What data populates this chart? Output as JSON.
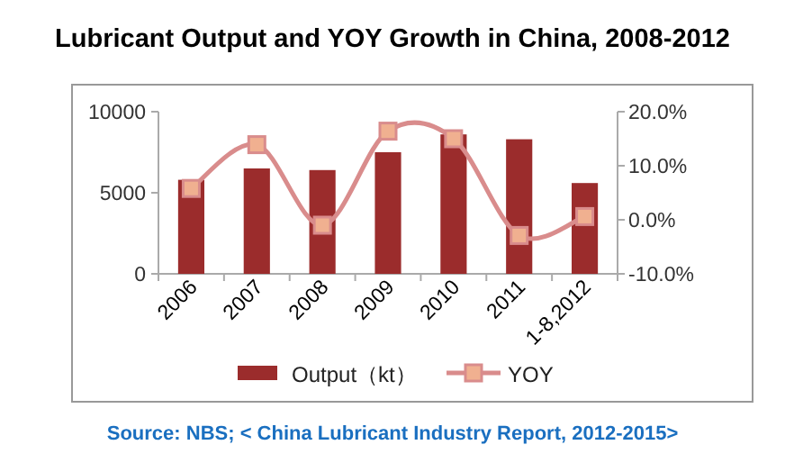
{
  "chart_data": {
    "type": "bar",
    "title": "Lubricant Output and YOY Growth in China, 2008-2012",
    "categories": [
      "2006",
      "2007",
      "2008",
      "2009",
      "2010",
      "2011",
      "1-8,2012"
    ],
    "series": [
      {
        "name": "Output（kt）",
        "color": "#9b2c2c",
        "values": [
          5800,
          6500,
          6400,
          7500,
          8600,
          8300,
          5600
        ]
      },
      {
        "name": "YOY",
        "type": "line",
        "axis": "y2",
        "color": "#d98c8c",
        "values": [
          5.8,
          13.9,
          -1.0,
          16.4,
          15.0,
          -2.9,
          0.6
        ]
      }
    ],
    "ylim": [
      0,
      10000
    ],
    "yticks": [
      0,
      5000,
      10000
    ],
    "y2lim": [
      -10,
      20
    ],
    "y2ticks": [
      {
        "value": -10,
        "label": "-10.0%"
      },
      {
        "value": 0,
        "label": "0.0%"
      },
      {
        "value": 10,
        "label": "10.0%"
      },
      {
        "value": 20,
        "label": "20.0%"
      }
    ],
    "marker": "square",
    "legend": "bottom",
    "grid": false,
    "annotations": [
      "Source: NBS; < China Lubricant Industry Report, 2012-2015>"
    ]
  }
}
